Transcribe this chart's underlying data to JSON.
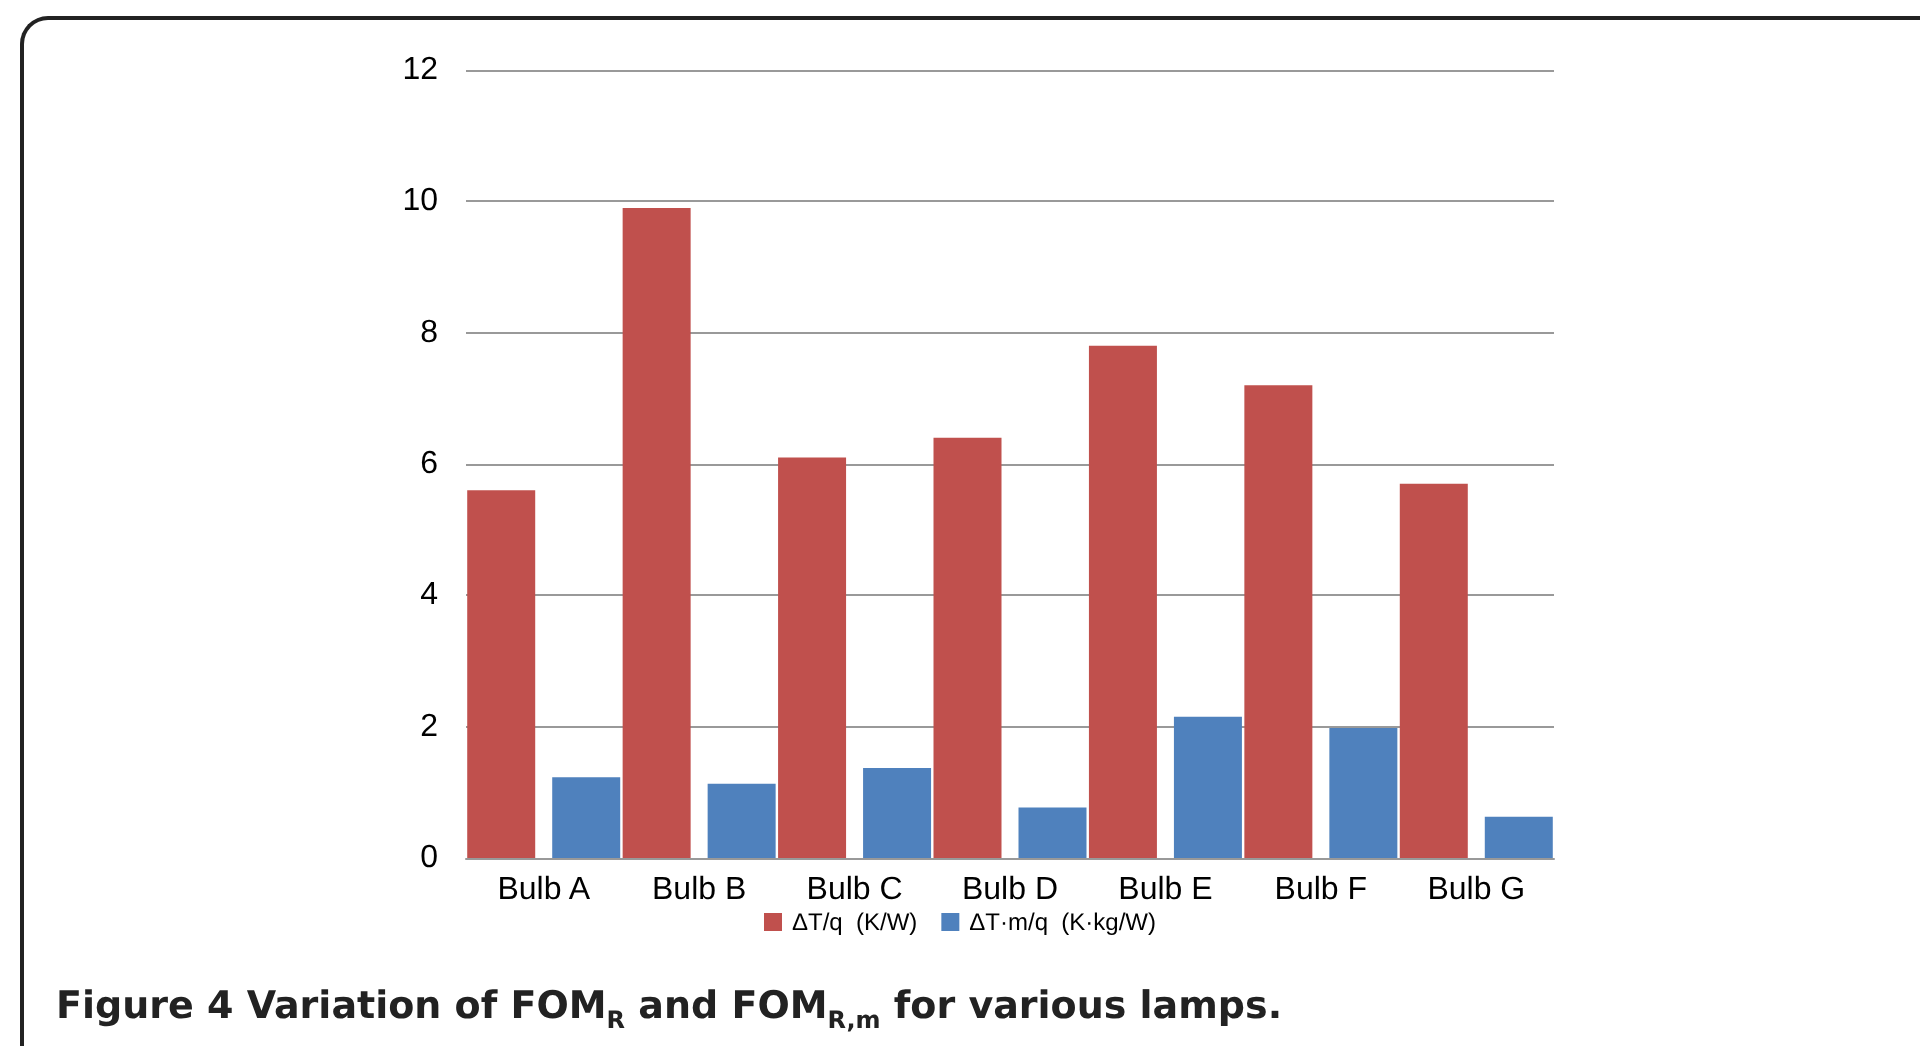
{
  "chart_data": {
    "type": "bar",
    "categories": [
      "Bulb A",
      "Bulb B",
      "Bulb C",
      "Bulb D",
      "Bulb E",
      "Bulb F",
      "Bulb G"
    ],
    "series": [
      {
        "name": "ΔT/q  (K/W)",
        "color": "#c0504d",
        "values": [
          5.6,
          9.9,
          6.1,
          6.4,
          7.8,
          7.2,
          5.7
        ]
      },
      {
        "name": "ΔT·m/q  (K·kg/W)",
        "color": "#4f81bd",
        "values": [
          1.23,
          1.13,
          1.37,
          0.77,
          2.15,
          1.98,
          0.63
        ]
      }
    ],
    "ylim": [
      0,
      12
    ],
    "yticks": [
      0,
      2,
      4,
      6,
      8,
      10,
      12
    ],
    "grid": "y",
    "legend": "bottom",
    "annotations": [
      "Figure 4 Variation of FOM$_{R}$ and FOM$_{R,m}$ for various lamps."
    ]
  }
}
